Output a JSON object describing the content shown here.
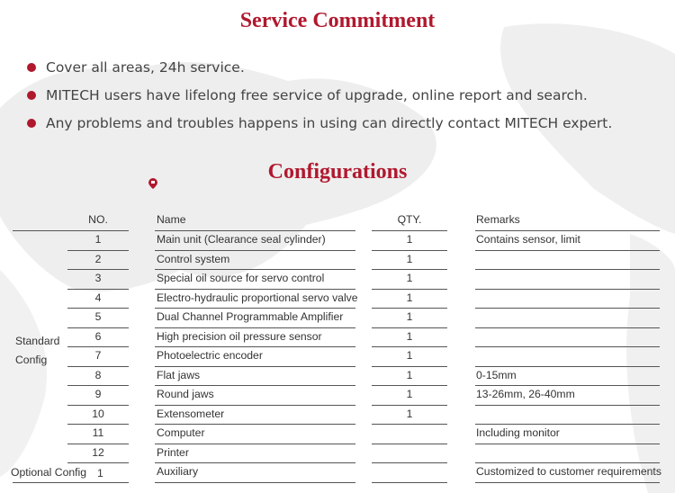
{
  "service": {
    "title": "Service Commitment",
    "bullets": [
      "Cover all areas, 24h service.",
      "MITECH users have lifelong free service of upgrade, online report and search.",
      "Any problems and troubles happens in using can directly contact MITECH expert."
    ]
  },
  "config": {
    "title": "Configurations",
    "headers": {
      "no": "NO.",
      "name": "Name",
      "qty": "QTY.",
      "remarks": "Remarks"
    },
    "groups": {
      "standard": "Standard Config",
      "standard_line1": "Standard",
      "standard_line2": "Config",
      "optional": "Optional Config"
    },
    "rows": [
      {
        "no": "1",
        "name": "Main unit (Clearance seal cylinder)",
        "qty": "1",
        "remarks": "Contains sensor, limit"
      },
      {
        "no": "2",
        "name": "Control system",
        "qty": "1",
        "remarks": ""
      },
      {
        "no": "3",
        "name": "Special oil source for servo control",
        "qty": "1",
        "remarks": ""
      },
      {
        "no": "4",
        "name": "Electro-hydraulic proportional servo valve",
        "qty": "1",
        "remarks": ""
      },
      {
        "no": "5",
        "name": "Dual Channel Programmable Amplifier",
        "qty": "1",
        "remarks": ""
      },
      {
        "no": "6",
        "name": "High precision oil pressure sensor",
        "qty": "1",
        "remarks": ""
      },
      {
        "no": "7",
        "name": "Photoelectric encoder",
        "qty": "1",
        "remarks": ""
      },
      {
        "no": "8",
        "name": "Flat jaws",
        "qty": "1",
        "remarks": "0-15mm"
      },
      {
        "no": "9",
        "name": "Round jaws",
        "qty": "1",
        "remarks": "13-26mm, 26-40mm"
      },
      {
        "no": "10",
        "name": "Extensometer",
        "qty": "1",
        "remarks": ""
      },
      {
        "no": "11",
        "name": "Computer",
        "qty": "",
        "remarks": "Including monitor"
      },
      {
        "no": "12",
        "name": "Printer",
        "qty": "",
        "remarks": ""
      },
      {
        "no": "1",
        "name": "Auxiliary",
        "qty": "",
        "remarks": "Customized to customer requirements"
      }
    ]
  },
  "colors": {
    "accent": "#b0182e",
    "map": "#ececec"
  },
  "icons": {
    "pin": "location-pin-icon",
    "bullet": "bullet-dot"
  }
}
